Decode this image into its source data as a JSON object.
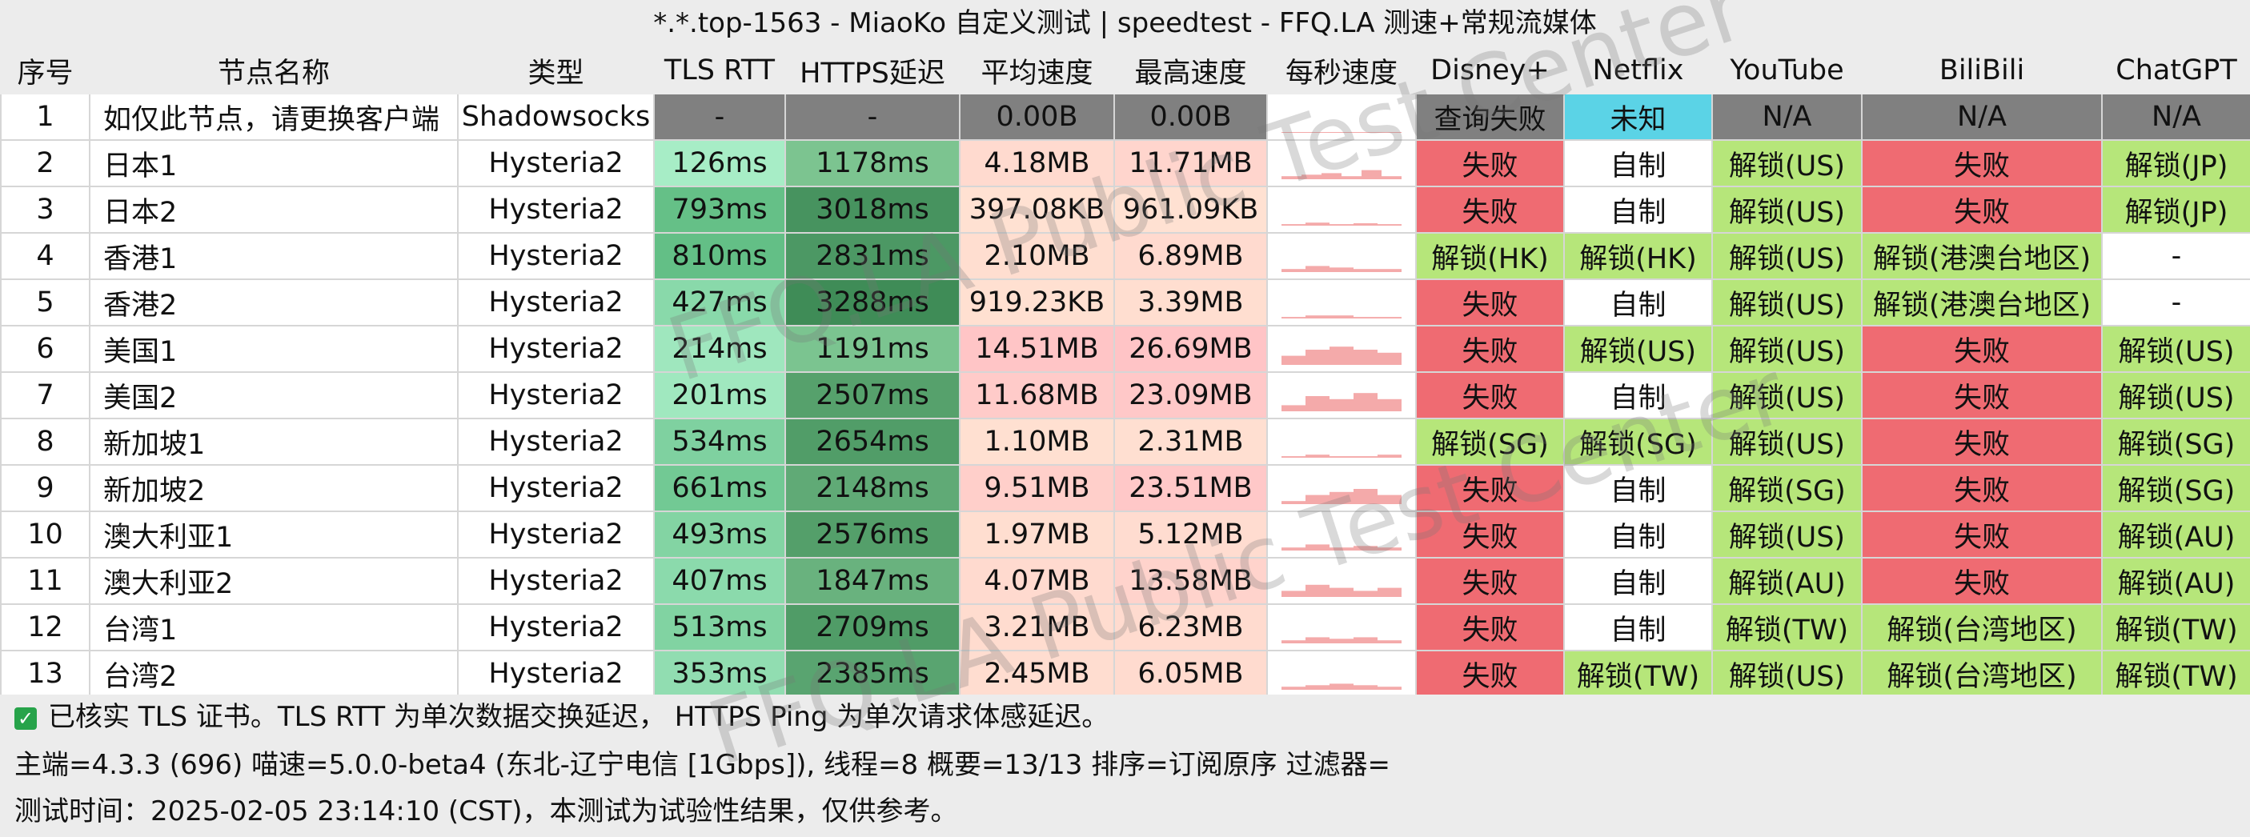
{
  "title": "*.*.top-1563 - MiaoKo 自定义测试 | speedtest - FFQ.LA 测速+常规流媒体",
  "headers": [
    "序号",
    "节点名称",
    "类型",
    "TLS RTT",
    "HTTPS延迟",
    "平均速度",
    "最高速度",
    "每秒速度",
    "Disney+",
    "Netflix",
    "YouTube",
    "BiliBili",
    "ChatGPT"
  ],
  "colors": {
    "gray": "#808080",
    "cyan": "#5bd3e6",
    "red": "#ef6b72",
    "green": "#b6e67a",
    "white": "#ffffff",
    "spark": "#f4aaaa",
    "check": "#27a34a"
  },
  "rows": [
    {
      "idx": "1",
      "name": "如仅此节点，请更换客户端",
      "type": "Shadowsocks",
      "tls": "-",
      "https": "-",
      "avg": "0.00B",
      "max": "0.00B",
      "disney": "查询失败",
      "netflix": "未知",
      "youtube": "N/A",
      "bili": "N/A",
      "chatgpt": "N/A",
      "spark": [
        0,
        0,
        0,
        0,
        0
      ]
    },
    {
      "idx": "2",
      "name": "日本1",
      "type": "Hysteria2",
      "tls": "126ms",
      "https": "1178ms",
      "avg": "4.18MB",
      "max": "11.71MB",
      "disney": "失败",
      "netflix": "自制",
      "youtube": "解锁(US)",
      "bili": "失败",
      "chatgpt": "解锁(JP)",
      "spark": [
        0.1,
        0.15,
        0.2,
        0.1,
        0.3,
        0.1
      ]
    },
    {
      "idx": "3",
      "name": "日本2",
      "type": "Hysteria2",
      "tls": "793ms",
      "https": "3018ms",
      "avg": "397.08KB",
      "max": "961.09KB",
      "disney": "失败",
      "netflix": "自制",
      "youtube": "解锁(US)",
      "bili": "失败",
      "chatgpt": "解锁(JP)",
      "spark": [
        0.05,
        0.1,
        0.05,
        0.08,
        0.05
      ]
    },
    {
      "idx": "4",
      "name": "香港1",
      "type": "Hysteria2",
      "tls": "810ms",
      "https": "2831ms",
      "avg": "2.10MB",
      "max": "6.89MB",
      "disney": "解锁(HK)",
      "netflix": "解锁(HK)",
      "youtube": "解锁(US)",
      "bili": "解锁(港澳台地区)",
      "chatgpt": "-",
      "spark": [
        0.1,
        0.2,
        0.15,
        0.1,
        0.1
      ]
    },
    {
      "idx": "5",
      "name": "香港2",
      "type": "Hysteria2",
      "tls": "427ms",
      "https": "3288ms",
      "avg": "919.23KB",
      "max": "3.39MB",
      "disney": "失败",
      "netflix": "自制",
      "youtube": "解锁(US)",
      "bili": "解锁(港澳台地区)",
      "chatgpt": "-",
      "spark": [
        0.05,
        0.1,
        0.1,
        0.05,
        0.05
      ]
    },
    {
      "idx": "6",
      "name": "美国1",
      "type": "Hysteria2",
      "tls": "214ms",
      "https": "1191ms",
      "avg": "14.51MB",
      "max": "26.69MB",
      "disney": "失败",
      "netflix": "解锁(US)",
      "youtube": "解锁(US)",
      "bili": "失败",
      "chatgpt": "解锁(US)",
      "spark": [
        0.3,
        0.5,
        0.6,
        0.5,
        0.4
      ]
    },
    {
      "idx": "7",
      "name": "美国2",
      "type": "Hysteria2",
      "tls": "201ms",
      "https": "2507ms",
      "avg": "11.68MB",
      "max": "23.09MB",
      "disney": "失败",
      "netflix": "自制",
      "youtube": "解锁(US)",
      "bili": "失败",
      "chatgpt": "解锁(US)",
      "spark": [
        0.2,
        0.5,
        0.4,
        0.6,
        0.4
      ]
    },
    {
      "idx": "8",
      "name": "新加坡1",
      "type": "Hysteria2",
      "tls": "534ms",
      "https": "2654ms",
      "avg": "1.10MB",
      "max": "2.31MB",
      "disney": "解锁(SG)",
      "netflix": "解锁(SG)",
      "youtube": "解锁(US)",
      "bili": "失败",
      "chatgpt": "解锁(SG)",
      "spark": [
        0.05,
        0.1,
        0.05,
        0.05,
        0.1
      ]
    },
    {
      "idx": "9",
      "name": "新加坡2",
      "type": "Hysteria2",
      "tls": "661ms",
      "https": "2148ms",
      "avg": "9.51MB",
      "max": "23.51MB",
      "disney": "失败",
      "netflix": "自制",
      "youtube": "解锁(SG)",
      "bili": "失败",
      "chatgpt": "解锁(SG)",
      "spark": [
        0.1,
        0.3,
        0.4,
        0.5,
        0.3
      ]
    },
    {
      "idx": "10",
      "name": "澳大利亚1",
      "type": "Hysteria2",
      "tls": "493ms",
      "https": "2576ms",
      "avg": "1.97MB",
      "max": "5.12MB",
      "disney": "失败",
      "netflix": "自制",
      "youtube": "解锁(US)",
      "bili": "失败",
      "chatgpt": "解锁(AU)",
      "spark": [
        0.1,
        0.2,
        0.1,
        0.15,
        0.1
      ]
    },
    {
      "idx": "11",
      "name": "澳大利亚2",
      "type": "Hysteria2",
      "tls": "407ms",
      "https": "1847ms",
      "avg": "4.07MB",
      "max": "13.58MB",
      "disney": "失败",
      "netflix": "自制",
      "youtube": "解锁(AU)",
      "bili": "失败",
      "chatgpt": "解锁(AU)",
      "spark": [
        0.2,
        0.4,
        0.3,
        0.2,
        0.3
      ]
    },
    {
      "idx": "12",
      "name": "台湾1",
      "type": "Hysteria2",
      "tls": "513ms",
      "https": "2709ms",
      "avg": "3.21MB",
      "max": "6.23MB",
      "disney": "失败",
      "netflix": "自制",
      "youtube": "解锁(TW)",
      "bili": "解锁(台湾地区)",
      "chatgpt": "解锁(TW)",
      "spark": [
        0.1,
        0.2,
        0.15,
        0.2,
        0.1
      ]
    },
    {
      "idx": "13",
      "name": "台湾2",
      "type": "Hysteria2",
      "tls": "353ms",
      "https": "2385ms",
      "avg": "2.45MB",
      "max": "6.05MB",
      "disney": "失败",
      "netflix": "解锁(TW)",
      "youtube": "解锁(US)",
      "bili": "解锁(台湾地区)",
      "chatgpt": "解锁(TW)",
      "spark": [
        0.1,
        0.15,
        0.2,
        0.15,
        0.1
      ]
    }
  ],
  "footer": {
    "check_icon": "check-icon",
    "note": "已核实 TLS 证书。TLS RTT 为单次数据交换延迟， HTTPS Ping 为单次请求体感延迟。",
    "info": "主端=4.3.3 (696) 喵速=5.0.0-beta4 (东北-辽宁电信 [1Gbps]), 线程=8 概要=13/13 排序=订阅原序 过滤器=",
    "time": "测试时间：2025-02-05 23:14:10 (CST)，本测试为试验性结果，仅供参考。"
  },
  "watermark": "FFQ.LA Public Test Center"
}
